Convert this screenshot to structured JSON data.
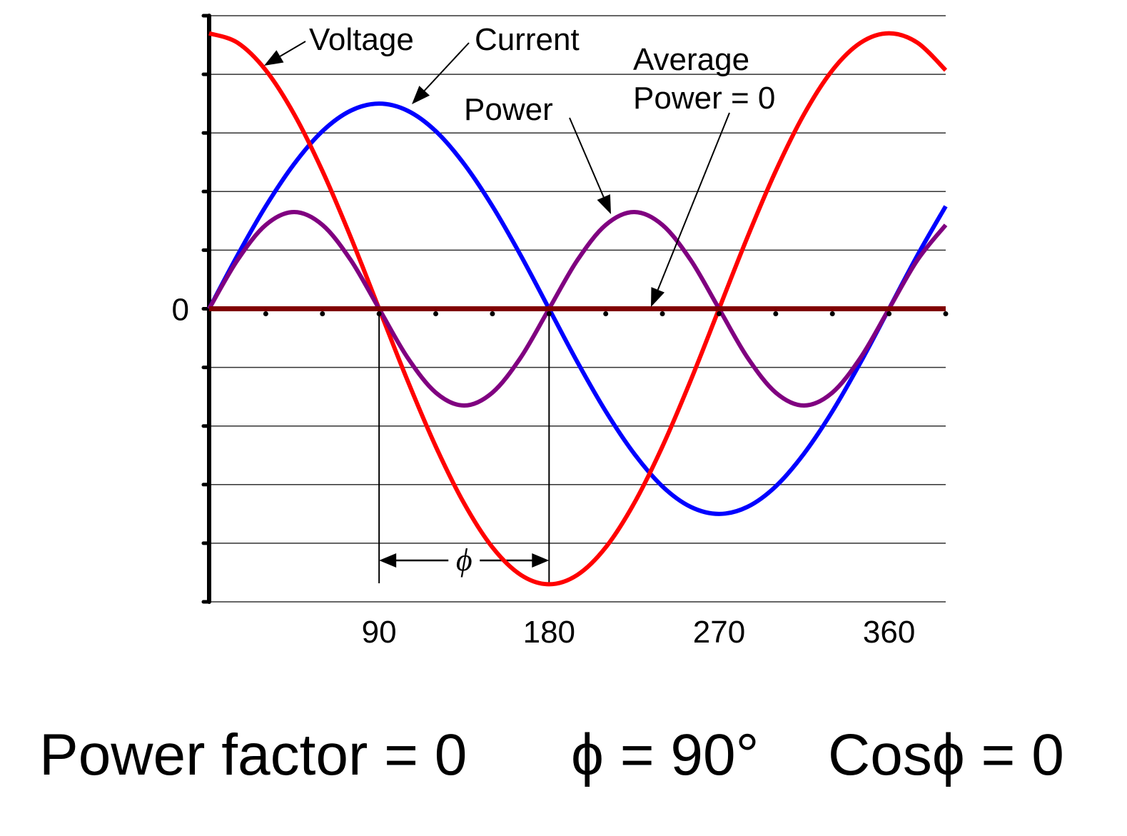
{
  "chart_data": {
    "type": "line",
    "x": [
      0,
      15,
      30,
      45,
      60,
      75,
      90,
      105,
      120,
      135,
      150,
      165,
      180,
      195,
      210,
      225,
      240,
      255,
      270,
      285,
      300,
      315,
      330,
      345,
      360,
      375,
      390
    ],
    "series": [
      {
        "name": "Voltage",
        "color": "#ff0000",
        "values": [
          4.7,
          4.54,
          4.07,
          3.32,
          2.35,
          1.22,
          0,
          -1.22,
          -2.35,
          -3.32,
          -4.07,
          -4.54,
          -4.7,
          -4.54,
          -4.07,
          -3.32,
          -2.35,
          -1.22,
          0,
          1.22,
          2.35,
          3.32,
          4.07,
          4.54,
          4.7,
          4.54,
          4.07
        ]
      },
      {
        "name": "Current",
        "color": "#0000ff",
        "values": [
          0,
          0.91,
          1.75,
          2.47,
          3.03,
          3.38,
          3.5,
          3.38,
          3.03,
          2.47,
          1.75,
          0.91,
          0,
          -0.91,
          -1.75,
          -2.47,
          -3.03,
          -3.38,
          -3.5,
          -3.38,
          -3.03,
          -2.47,
          -1.75,
          -0.91,
          0,
          0.91,
          1.75
        ]
      },
      {
        "name": "Power",
        "color": "#800080",
        "values": [
          0,
          0.83,
          1.43,
          1.65,
          1.43,
          0.83,
          0,
          -0.83,
          -1.43,
          -1.65,
          -1.43,
          -0.83,
          0,
          0.83,
          1.43,
          1.65,
          1.43,
          0.83,
          0,
          -0.83,
          -1.43,
          -1.65,
          -1.43,
          -0.83,
          0,
          0.83,
          1.43
        ]
      },
      {
        "name": "Average Power = 0",
        "color": "#800000",
        "values": [
          0,
          0,
          0,
          0,
          0,
          0,
          0,
          0,
          0,
          0,
          0,
          0,
          0,
          0,
          0,
          0,
          0,
          0,
          0,
          0,
          0,
          0,
          0,
          0,
          0,
          0,
          0
        ]
      }
    ],
    "annotations": [
      {
        "lines": [
          "Voltage"
        ]
      },
      {
        "lines": [
          "Current"
        ]
      },
      {
        "lines": [
          "Power"
        ]
      },
      {
        "lines": [
          "Average",
          "Power = 0"
        ]
      }
    ],
    "phase_marker": {
      "label": "ϕ",
      "from": 90,
      "to": 180
    },
    "xlim": [
      0,
      390
    ],
    "xticks": [
      90,
      180,
      270,
      360
    ],
    "xminor_ticks": [
      30,
      60,
      90,
      120,
      150,
      180,
      210,
      240,
      270,
      300,
      330,
      360,
      390
    ],
    "ylim": [
      -5,
      5
    ],
    "yticks": [
      0
    ],
    "ygrid": [
      -5,
      -4,
      -3,
      -2,
      -1,
      0,
      1,
      2,
      3,
      4,
      5
    ],
    "grid": true,
    "caption": [
      "Power factor = 0",
      "ϕ = 90°",
      "Cosϕ = 0"
    ]
  }
}
